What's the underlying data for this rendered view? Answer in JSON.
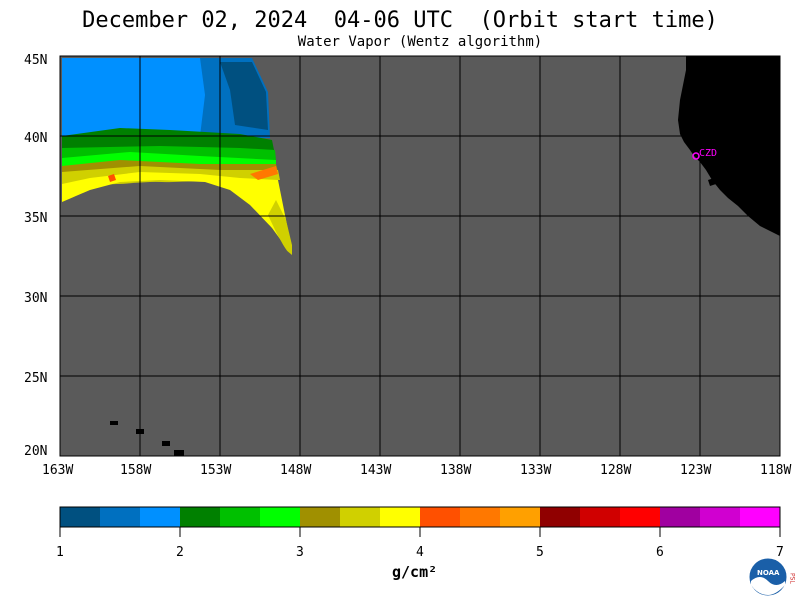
{
  "header": {
    "title": "December 02, 2024  04-06 UTC  (Orbit start time)",
    "subtitle": "Water Vapor (Wentz algorithm)"
  },
  "map": {
    "lon_labels": [
      "163W",
      "158W",
      "153W",
      "148W",
      "143W",
      "138W",
      "133W",
      "128W",
      "123W",
      "118W"
    ],
    "lat_labels": [
      "45N",
      "40N",
      "35N",
      "30N",
      "25N",
      "20N"
    ],
    "station_label": "CZD",
    "colors": {
      "background": "#5a5a5a",
      "land": "#000000",
      "grid": "#000000",
      "station": "#ff00ff"
    }
  },
  "legend": {
    "tick_labels": [
      "1",
      "2",
      "3",
      "4",
      "5",
      "6",
      "7"
    ],
    "units": "g/cm²",
    "colors": [
      "#005080",
      "#0070c0",
      "#0090ff",
      "#008000",
      "#00c000",
      "#00ff00",
      "#a09000",
      "#d0d000",
      "#ffff00",
      "#ff5000",
      "#ff7800",
      "#ffa000",
      "#900000",
      "#d00000",
      "#ff0000",
      "#a000a0",
      "#d000d0",
      "#ff00ff"
    ]
  },
  "logo": {
    "text": "NOAA",
    "side_text": "PSL"
  }
}
